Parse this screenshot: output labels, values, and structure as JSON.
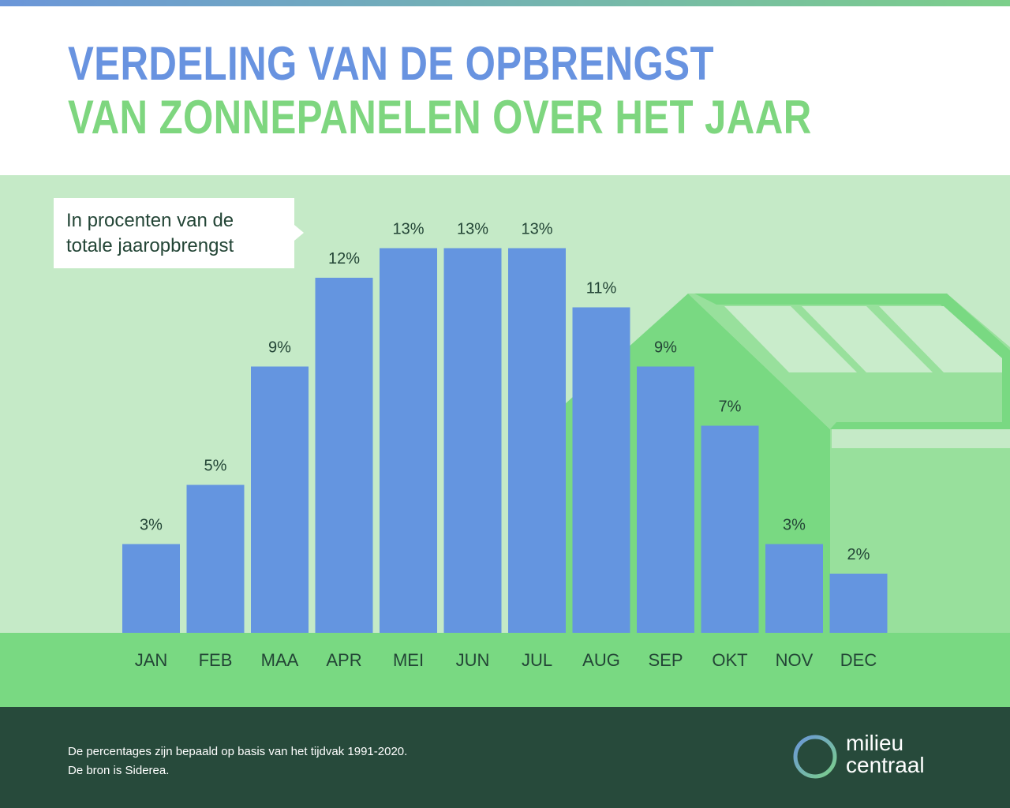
{
  "header": {
    "title_line1": "VERDELING VAN DE OPBRENGST",
    "title_line2": "VAN ZONNEPANELEN OVER HET JAAR"
  },
  "callout": {
    "line1": "In procenten van de",
    "line2": "totale jaaropbrengst"
  },
  "colors": {
    "bar": "#6495e0",
    "title_blue": "#6893e0",
    "title_green": "#7ed67f",
    "footer_bg": "#274a3b",
    "ground": "#79d982",
    "panel_bg": "#c5eac7"
  },
  "chart_data": {
    "type": "bar",
    "title": "",
    "xlabel": "",
    "ylabel": "In procenten van de totale jaaropbrengst",
    "categories": [
      "JAN",
      "FEB",
      "MAA",
      "APR",
      "MEI",
      "JUN",
      "JUL",
      "AUG",
      "SEP",
      "OKT",
      "NOV",
      "DEC"
    ],
    "values": [
      3,
      5,
      9,
      12,
      13,
      13,
      13,
      11,
      9,
      7,
      3,
      2
    ],
    "labels": [
      "3%",
      "5%",
      "9%",
      "12%",
      "13%",
      "13%",
      "13%",
      "11%",
      "9%",
      "7%",
      "3%",
      "2%"
    ],
    "ylim": [
      0,
      13
    ],
    "grid": false,
    "legend": "none"
  },
  "footer": {
    "note_line1": "De percentages zijn bepaald op basis van het tijdvak 1991-2020.",
    "note_line2": "De bron is Siderea.",
    "logo_line1": "milieu",
    "logo_line2": "centraal",
    "logo_icon": "ring-logo-icon"
  }
}
